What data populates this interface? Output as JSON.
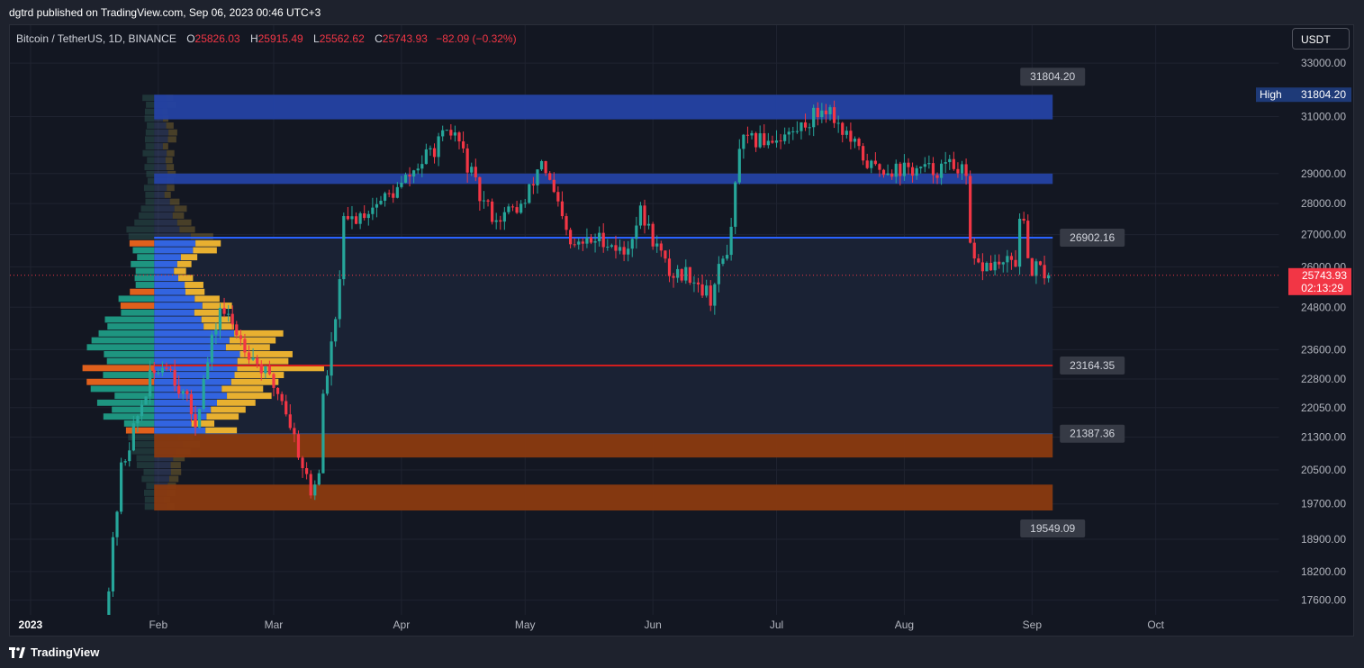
{
  "publish": {
    "text": "dgtrd published on TradingView.com, Sep 06, 2023 00:46 UTC+3"
  },
  "legend": {
    "symbol": "Bitcoin / TetherUS, 1D, BINANCE",
    "o_label": "O",
    "o": "25826.03",
    "h_label": "H",
    "h": "25915.49",
    "l_label": "L",
    "l": "25562.62",
    "c_label": "C",
    "c": "25743.93",
    "change": "−82.09 (−0.32%)"
  },
  "currency": {
    "label": "USDT"
  },
  "footer": {
    "brand": "TradingView"
  },
  "colors": {
    "background": "#131722",
    "up": "#26a69a",
    "down": "#f23645",
    "zone_blue": "#2442a4",
    "zone_orange": "#8a3a10",
    "vp_blue": "#3264e0",
    "vp_yellow": "#e8b030",
    "vp_teal": "#1e9580",
    "vp_orange": "#e0601c",
    "poc_line": "#d21e1e",
    "level_line": "#2962ff"
  },
  "chart_data": {
    "type": "candlestick",
    "symbol": "BTCUSDT",
    "interval": "1D",
    "y_axis": {
      "scale": "log",
      "range": [
        17300,
        34500
      ],
      "ticks": [
        "33000.00",
        "31000.00",
        "29000.00",
        "28000.00",
        "27000.00",
        "26000.00",
        "24800.00",
        "23600.00",
        "22800.00",
        "22050.00",
        "21300.00",
        "20500.00",
        "19700.00",
        "18900.00",
        "18200.00",
        "17600.00"
      ]
    },
    "x_axis": {
      "range": [
        "2022-12-27",
        "2023-10-31"
      ],
      "ticks": [
        {
          "date": "2023-01-01",
          "label": "2023",
          "bold": true
        },
        {
          "date": "2023-02-01",
          "label": "Feb"
        },
        {
          "date": "2023-03-01",
          "label": "Mar"
        },
        {
          "date": "2023-04-01",
          "label": "Apr"
        },
        {
          "date": "2023-05-01",
          "label": "May"
        },
        {
          "date": "2023-06-01",
          "label": "Jun"
        },
        {
          "date": "2023-07-01",
          "label": "Jul"
        },
        {
          "date": "2023-08-01",
          "label": "Aug"
        },
        {
          "date": "2023-09-01",
          "label": "Sep"
        },
        {
          "date": "2023-10-01",
          "label": "Oct"
        }
      ]
    },
    "price_path": {
      "start": "2023-01-19",
      "end": "2023-09-05",
      "anchors": [
        [
          "2023-01-19",
          17000
        ],
        [
          "2023-01-23",
          20500
        ],
        [
          "2023-01-30",
          22800
        ],
        [
          "2023-02-03",
          23300
        ],
        [
          "2023-02-10",
          21700
        ],
        [
          "2023-02-16",
          24800
        ],
        [
          "2023-02-24",
          23400
        ],
        [
          "2023-03-03",
          22300
        ],
        [
          "2023-03-09",
          20300
        ],
        [
          "2023-03-10",
          19900
        ],
        [
          "2023-03-12",
          20500
        ],
        [
          "2023-03-13",
          22300
        ],
        [
          "2023-03-16",
          24300
        ],
        [
          "2023-03-18",
          27300
        ],
        [
          "2023-03-31",
          28450
        ],
        [
          "2023-04-11",
          30200
        ],
        [
          "2023-04-14",
          30400
        ],
        [
          "2023-04-20",
          28200
        ],
        [
          "2023-04-24",
          27500
        ],
        [
          "2023-05-01",
          28000
        ],
        [
          "2023-05-05",
          29500
        ],
        [
          "2023-05-12",
          26600
        ],
        [
          "2023-05-20",
          26900
        ],
        [
          "2023-05-25",
          26400
        ],
        [
          "2023-05-29",
          27700
        ],
        [
          "2023-06-05",
          25800
        ],
        [
          "2023-06-10",
          25800
        ],
        [
          "2023-06-15",
          25100
        ],
        [
          "2023-06-20",
          27000
        ],
        [
          "2023-06-22",
          30000
        ],
        [
          "2023-07-05",
          30400
        ],
        [
          "2023-07-13",
          31400
        ],
        [
          "2023-07-20",
          29900
        ],
        [
          "2023-07-24",
          29200
        ],
        [
          "2023-08-07",
          29100
        ],
        [
          "2023-08-14",
          29300
        ],
        [
          "2023-08-16",
          28700
        ],
        [
          "2023-08-17",
          26600
        ],
        [
          "2023-08-18",
          26000
        ],
        [
          "2023-08-28",
          26100
        ],
        [
          "2023-08-29",
          27700
        ],
        [
          "2023-08-30",
          27200
        ],
        [
          "2023-08-31",
          26000
        ],
        [
          "2023-09-05",
          25743.93
        ]
      ]
    },
    "last_price": {
      "value": 25743.93,
      "label": "25743.93",
      "countdown": "02:13:29"
    },
    "high_marker": {
      "label": "High",
      "value": "31804.20"
    },
    "zones": [
      {
        "name": "resistance-1",
        "top": 31804.2,
        "bottom": 30900,
        "color": "#2442a4"
      },
      {
        "name": "resistance-2",
        "top": 29000,
        "bottom": 28650,
        "color": "#2442a4"
      },
      {
        "name": "support-1",
        "top": 21387.36,
        "bottom": 20800,
        "color": "#8a3a10"
      },
      {
        "name": "support-2",
        "top": 20150,
        "bottom": 19549.09,
        "color": "#8a3a10"
      }
    ],
    "zone_range": {
      "start": "2023-01-31",
      "end": "2023-09-06"
    },
    "level_lines": [
      {
        "value": 26902.16,
        "label": "26902.16",
        "color": "#2962ff"
      },
      {
        "value": 23164.35,
        "label": "23164.35",
        "color": "#d21e1e"
      }
    ],
    "range_labels": [
      {
        "value": 31804.2,
        "label": "31804.20",
        "position": "above"
      },
      {
        "value": 21387.36,
        "label": "21387.36",
        "position": "right"
      },
      {
        "value": 19549.09,
        "label": "19549.09",
        "position": "below"
      }
    ],
    "value_area": {
      "top": 26902.16,
      "bottom": 21387.36
    },
    "volume_profile": {
      "anchor_date": "2023-01-31",
      "price_low": 19549.09,
      "price_high": 31804.2,
      "rows": 60,
      "poc": 23164.35,
      "scale_note": "bar length relative to POC"
    }
  }
}
